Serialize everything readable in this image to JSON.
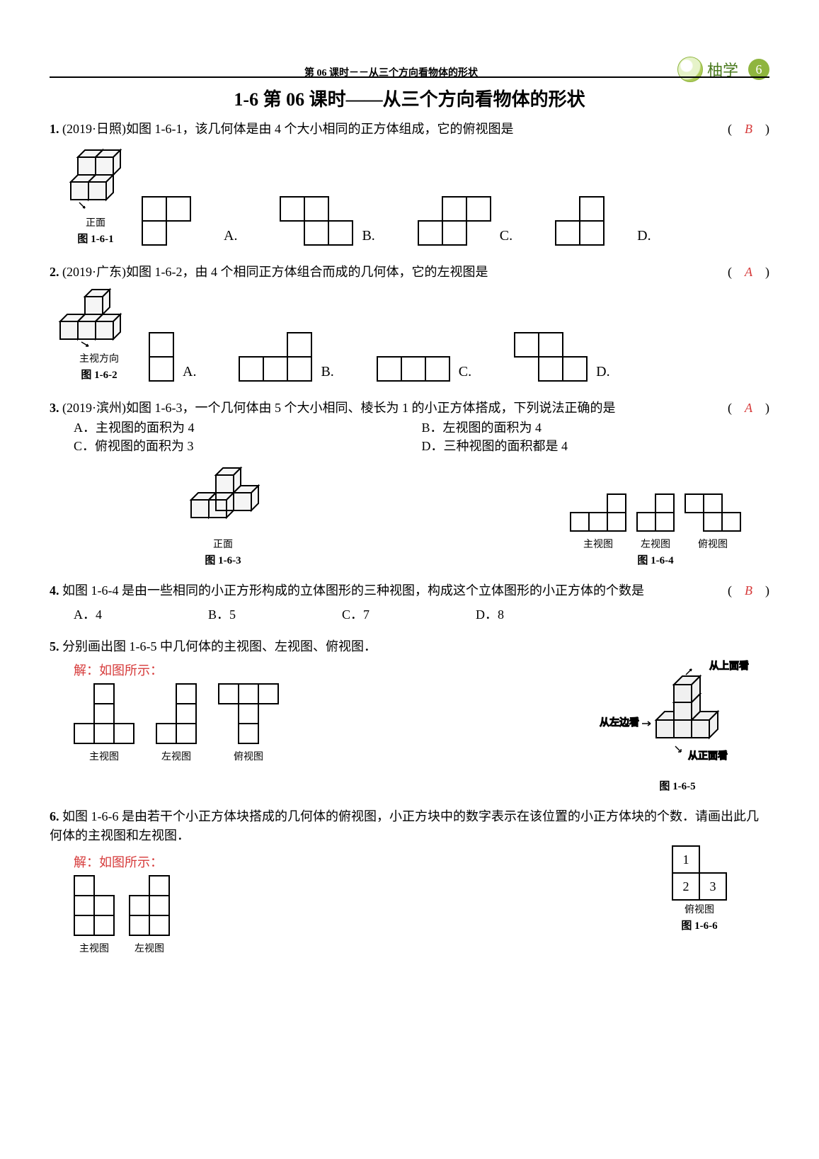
{
  "header": {
    "sub": "第 06 课时－－从三个方向看物体的形状",
    "brand": "柚学",
    "page_num": "6"
  },
  "title": "1-6  第 06 课时——从三个方向看物体的形状",
  "q1": {
    "text": "(2019·日照)如图 1-6-1，该几何体是由 4 个大小相同的正方体组成，它的俯视图是",
    "answer": "B",
    "caption": "图 1-6-1",
    "face": "正面",
    "optA": [
      [
        "f",
        "f",
        ""
      ],
      [
        "f",
        "",
        ""
      ]
    ],
    "optB": [
      [
        "f",
        "f",
        ""
      ],
      [
        "",
        "f",
        "f"
      ]
    ],
    "optC": [
      [
        "",
        "f",
        "f"
      ],
      [
        "f",
        "f",
        ""
      ]
    ],
    "optD": [
      [
        "",
        "f",
        ""
      ],
      [
        "f",
        "f",
        ""
      ]
    ],
    "labels": {
      "A": "A.",
      "B": "B.",
      "C": "C.",
      "D": "D."
    }
  },
  "q2": {
    "text": "(2019·广东)如图 1-6-2，由 4 个相同正方体组合而成的几何体，它的左视图是",
    "answer": "A",
    "caption": "图 1-6-2",
    "face": "主视方向",
    "optA": [
      [
        "f"
      ],
      [
        "f"
      ]
    ],
    "optB": [
      [
        "",
        "",
        "f"
      ],
      [
        "f",
        "f",
        "f"
      ]
    ],
    "optC": [
      [
        "f",
        "f",
        "f"
      ]
    ],
    "optD": [
      [
        "f",
        "f",
        ""
      ],
      [
        "",
        "f",
        "f"
      ]
    ],
    "labels": {
      "A": "A.",
      "B": "B.",
      "C": "C.",
      "D": "D."
    }
  },
  "q3": {
    "text": "(2019·滨州)如图 1-6-3，一个几何体由 5 个大小相同、棱长为 1 的小正方体搭成，下列说法正确的是",
    "answer": "A",
    "A": "A．主视图的面积为 4",
    "B": "B．左视图的面积为 4",
    "C": "C．俯视图的面积为 3",
    "D": "D．三种视图的面积都是 4",
    "caption": "图 1-6-3",
    "face": "正面",
    "caption2": "图 1-6-4",
    "v1": "主视图",
    "v2": "左视图",
    "v3": "俯视图",
    "g1": [
      [
        "",
        "",
        "f"
      ],
      [
        "f",
        "f",
        "f"
      ]
    ],
    "g2": [
      [
        "",
        "f"
      ],
      [
        "f",
        "f"
      ]
    ],
    "g3": [
      [
        "f",
        "f",
        ""
      ],
      [
        "",
        "f",
        "f"
      ]
    ]
  },
  "q4": {
    "text": "如图 1-6-4 是由一些相同的小正方形构成的立体图形的三种视图，构成这个立体图形的小正方体的个数是",
    "answer": "B",
    "A": "A．4",
    "B": "B．5",
    "C": "C．7",
    "D": "D．8"
  },
  "q5": {
    "text": "分别画出图 1-6-5 中几何体的主视图、左视图、俯视图．",
    "sol": "解：如图所示：",
    "caption": "图 1-6-5",
    "v1": "主视图",
    "v2": "左视图",
    "v3": "俯视图",
    "g1": [
      [
        "",
        "f",
        ""
      ],
      [
        "",
        "f",
        ""
      ],
      [
        "f",
        "f",
        "f"
      ]
    ],
    "g2": [
      [
        "",
        "f"
      ],
      [
        "",
        "f"
      ],
      [
        "f",
        "f"
      ]
    ],
    "g3": [
      [
        "f",
        "f",
        "f"
      ],
      [
        "",
        "f",
        ""
      ],
      [
        "",
        "f",
        ""
      ]
    ],
    "arr1": "从上面看",
    "arr2": "从左边看",
    "arr3": "从正面看"
  },
  "q6": {
    "text": "如图 1-6-6 是由若干个小正方体块搭成的几何体的俯视图，小正方块中的数字表示在该位置的小正方体块的个数．请画出此几何体的主视图和左视图．",
    "sol": "解：如图所示：",
    "caption": "图 1-6-6",
    "sub": "俯视图",
    "v1": "主视图",
    "v2": "左视图",
    "g1": [
      [
        "f",
        ""
      ],
      [
        "f",
        "f"
      ],
      [
        "f",
        "f"
      ]
    ],
    "g2": [
      [
        "",
        "f"
      ],
      [
        "f",
        "f"
      ],
      [
        "f",
        "f"
      ]
    ],
    "top": [
      [
        "1",
        ""
      ],
      [
        "2",
        "3"
      ]
    ]
  }
}
